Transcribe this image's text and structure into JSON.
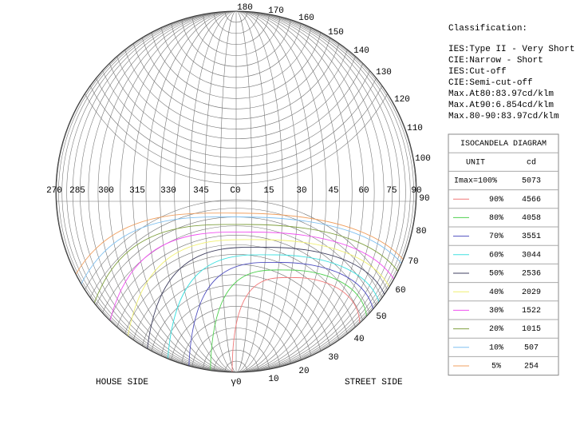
{
  "classification": {
    "title": "Classification:",
    "lines": [
      "IES:Type II - Very Short",
      "CIE:Narrow - Short",
      "IES:Cut-off",
      "CIE:Semi-cut-off",
      "Max.At80:83.97cd/klm",
      "Max.At90:6.854cd/klm",
      "Max.80-90:83.97cd/klm"
    ]
  },
  "diagram": {
    "top_labels": [
      "180",
      "170",
      "160",
      "150",
      "140",
      "130",
      "120",
      "110",
      "100"
    ],
    "horizontal_labels": [
      "270",
      "285",
      "300",
      "315",
      "330",
      "345",
      "C0",
      "15",
      "30",
      "45",
      "60",
      "75",
      "90"
    ],
    "gamma_labels": [
      "90",
      "80",
      "70",
      "60",
      "50",
      "40",
      "30",
      "20",
      "10",
      "γ0"
    ],
    "house_side": "HOUSE SIDE",
    "street_side": "STREET SIDE"
  },
  "table": {
    "title": "ISOCANDELA DIAGRAM",
    "header": [
      "UNIT",
      "cd"
    ],
    "rows": [
      {
        "level": "Imax=100%",
        "cd": 5073
      },
      {
        "level": "90%",
        "cd": 4566,
        "color": "#f07878"
      },
      {
        "level": "80%",
        "cd": 4058,
        "color": "#50d050"
      },
      {
        "level": "70%",
        "cd": 3551,
        "color": "#5050c0"
      },
      {
        "level": "60%",
        "cd": 3044,
        "color": "#40e0e0"
      },
      {
        "level": "50%",
        "cd": 2536,
        "color": "#404060"
      },
      {
        "level": "40%",
        "cd": 2029,
        "color": "#f0f070"
      },
      {
        "level": "30%",
        "cd": 1522,
        "color": "#f050f0"
      },
      {
        "level": "20%",
        "cd": 1015,
        "color": "#80a040"
      },
      {
        "level": "10%",
        "cd": 507,
        "color": "#80c0f0"
      },
      {
        "level": "5%",
        "cd": 254,
        "color": "#f0a060"
      }
    ]
  }
}
